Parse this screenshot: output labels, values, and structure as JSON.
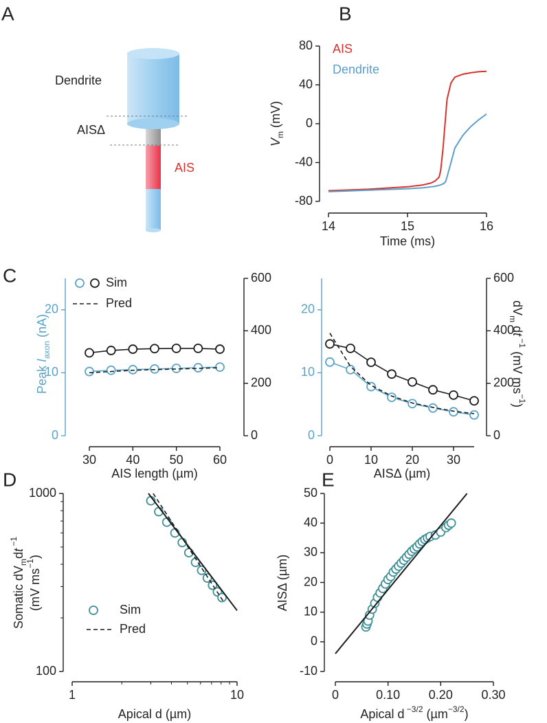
{
  "panel_a": {
    "label": "A",
    "dendrite": "Dendrite",
    "ais_delta": "AISΔ",
    "ais": "AIS"
  },
  "chart_data": [
    {
      "type": "line",
      "panel": "B",
      "xlabel": "Time (ms)",
      "ylabel": [
        [
          {
            "text": "V",
            "italic": true
          },
          {
            "text": "m",
            "sub": true
          },
          {
            "text": " (mV)"
          }
        ]
      ],
      "x": [
        14,
        14.5,
        15,
        15.2,
        15.3,
        15.35,
        15.4,
        15.42,
        15.45,
        15.48,
        15.5,
        15.55,
        15.6,
        15.7,
        15.8,
        15.9,
        16
      ],
      "series": [
        {
          "name": "AIS",
          "color": "#d7322b",
          "line": "solid",
          "values": [
            -69,
            -67.5,
            -65,
            -63,
            -61,
            -59,
            -55,
            -48,
            -25,
            5,
            25,
            42,
            48,
            51,
            52.5,
            53.5,
            54
          ]
        },
        {
          "name": "Dendrite",
          "color": "#5b9ec9",
          "line": "solid",
          "values": [
            -70,
            -68.5,
            -67,
            -66,
            -65,
            -64.5,
            -63.5,
            -63,
            -62,
            -60,
            -55,
            -40,
            -25,
            -12,
            -3,
            4,
            10
          ]
        }
      ],
      "xlim": [
        14,
        16
      ],
      "xticks": [
        14,
        15,
        16
      ],
      "ylim": [
        -80,
        80
      ],
      "yticks": [
        -80,
        -40,
        0,
        40,
        80
      ],
      "legend": "upper left"
    },
    {
      "type": "line",
      "panel": "C",
      "xlabel": "AIS length (µm)",
      "ylabel": [
        [
          {
            "text": "Peak "
          },
          {
            "text": "I",
            "italic": true
          },
          {
            "text": "axon",
            "sub": true
          },
          {
            "text": " (nA)"
          }
        ]
      ],
      "y_axis_color": "#5aa3c8",
      "x": [
        30,
        35,
        40,
        45,
        50,
        55,
        60
      ],
      "series": [
        {
          "name": "Sim",
          "color": "#5aa3c8",
          "line": "solid",
          "marker": "circle",
          "values": [
            10.2,
            10.4,
            10.5,
            10.6,
            10.7,
            10.8,
            10.9
          ]
        },
        {
          "name": "Sim",
          "color": "#1a1a1a",
          "line": "solid",
          "marker": "circle",
          "axis": "y2",
          "values": [
            316,
            325,
            330,
            332,
            333,
            333,
            330
          ]
        },
        {
          "name": "Pred",
          "color": "#1a1a1a",
          "line": "dashed",
          "values": [
            10.0,
            10.2,
            10.4,
            10.5,
            10.6,
            10.7,
            10.8
          ]
        }
      ],
      "xlim": [
        30,
        60
      ],
      "xticks": [
        30,
        40,
        50,
        60
      ],
      "ylim": [
        0,
        25
      ],
      "yticks": [
        0,
        10,
        20
      ],
      "y2lim": [
        0,
        600
      ],
      "y2ticks": [
        0,
        200,
        400,
        600
      ],
      "legend": "upper left"
    },
    {
      "type": "line",
      "xlabel": "AISΔ (µm)",
      "y2label": [
        [
          {
            "text": "dV"
          },
          {
            "text": "m",
            "sub": true
          },
          {
            "text": " d"
          },
          {
            "text": "t",
            "italic": true
          },
          {
            "text": " −1",
            "sup": true
          },
          {
            "text": " (mV ms"
          },
          {
            "text": "−1",
            "sup": true
          },
          {
            "text": ")"
          }
        ]
      ],
      "y_axis_color": "#5aa3c8",
      "x": [
        0,
        5,
        10,
        15,
        20,
        25,
        30,
        35
      ],
      "series": [
        {
          "color": "#5aa3c8",
          "line": "solid",
          "marker": "circle",
          "values": [
            11.7,
            10.5,
            7.8,
            6.1,
            5.1,
            4.4,
            3.8,
            3.3
          ]
        },
        {
          "color": "#1a1a1a",
          "line": "solid",
          "marker": "circle",
          "axis": "y2",
          "values": [
            350,
            333,
            280,
            235,
            205,
            175,
            155,
            133
          ]
        },
        {
          "color": "#1a1a1a",
          "line": "dashed",
          "values": [
            16.3,
            11.0,
            8.0,
            6.3,
            5.2,
            4.5,
            3.9,
            3.5
          ]
        }
      ],
      "xlim": [
        0,
        35
      ],
      "xticks": [
        0,
        10,
        20,
        30
      ],
      "ylim": [
        0,
        25
      ],
      "yticks": [
        0,
        10,
        20
      ],
      "y2lim": [
        0,
        600
      ],
      "y2ticks": [
        0,
        200,
        400,
        600
      ]
    },
    {
      "type": "scatter",
      "panel": "D",
      "xlabel": "Apical d (µm)",
      "ylabel": [
        [
          {
            "text": "Somatic dV"
          },
          {
            "text": "m",
            "sub": true
          },
          {
            "text": "d"
          },
          {
            "text": "t",
            "italic": true
          },
          {
            "text": " −1",
            "sup": true
          }
        ],
        [
          {
            "text": "(mV ms"
          },
          {
            "text": "−1",
            "sup": true
          },
          {
            "text": ")"
          }
        ]
      ],
      "series": [
        {
          "name": "Sim",
          "color": "#3f8f96",
          "marker": "circle",
          "x": [
            3,
            3.35,
            3.75,
            4.2,
            4.65,
            5.1,
            5.6,
            6.1,
            6.6,
            7.1,
            7.6,
            8.1
          ],
          "values": [
            910,
            790,
            690,
            600,
            530,
            465,
            410,
            370,
            335,
            305,
            280,
            260
          ]
        },
        {
          "color": "#1a1a1a",
          "line": "solid",
          "x": [
            2.9,
            10
          ],
          "values": [
            1000,
            220
          ]
        },
        {
          "name": "Pred",
          "color": "#1a1a1a",
          "line": "dashed",
          "x": [
            3.1,
            8.2
          ],
          "values": [
            1000,
            250
          ]
        }
      ],
      "log_x": true,
      "log_y": true,
      "xlim": [
        1,
        10
      ],
      "xticks": [
        1,
        10
      ],
      "xticks_minor": [
        2,
        3,
        4,
        5,
        6,
        7,
        8,
        9
      ],
      "ylim": [
        100,
        1000
      ],
      "yticks": [
        100,
        1000
      ],
      "yticks_minor": [
        200,
        300,
        400,
        500,
        600,
        700,
        800,
        900
      ],
      "legend": "lower left"
    },
    {
      "type": "scatter",
      "panel": "E",
      "xlabel": [
        [
          {
            "text": "Apical d"
          },
          {
            "text": " −3/2",
            "sup": true
          },
          {
            "text": " (µm"
          },
          {
            "text": "−3/2",
            "sup": true
          },
          {
            "text": ")"
          }
        ]
      ],
      "ylabel": "AISΔ (µm)",
      "series": [
        {
          "color": "#3f8f96",
          "marker": "circle",
          "x": [
            0.058,
            0.06,
            0.062,
            0.065,
            0.07,
            0.075,
            0.08,
            0.085,
            0.09,
            0.095,
            0.1,
            0.105,
            0.11,
            0.115,
            0.12,
            0.125,
            0.13,
            0.135,
            0.14,
            0.145,
            0.15,
            0.155,
            0.16,
            0.165,
            0.17,
            0.175,
            0.18,
            0.19,
            0.2,
            0.21,
            0.215,
            0.22
          ],
          "values": [
            5,
            6,
            7,
            9,
            11,
            13,
            15,
            16.5,
            18,
            19.5,
            21,
            22,
            23.5,
            24.5,
            25.5,
            26.5,
            27.5,
            28.5,
            29.5,
            30.5,
            31.3,
            32,
            33,
            33.8,
            34.5,
            35,
            35.5,
            36,
            37,
            38.5,
            39.3,
            40
          ]
        },
        {
          "color": "#1a1a1a",
          "line": "solid",
          "x": [
            0,
            0.25
          ],
          "values": [
            -4,
            50
          ]
        }
      ],
      "xlim": [
        0,
        0.3
      ],
      "xticks": [
        0,
        {
          "value": 0.1,
          "label": "0.10"
        },
        {
          "value": 0.2,
          "label": "0.20"
        },
        {
          "value": 0.3,
          "label": "0.30"
        }
      ],
      "ylim": [
        -10,
        50
      ],
      "yticks": [
        -10,
        0,
        10,
        20,
        30,
        40,
        50
      ]
    }
  ]
}
